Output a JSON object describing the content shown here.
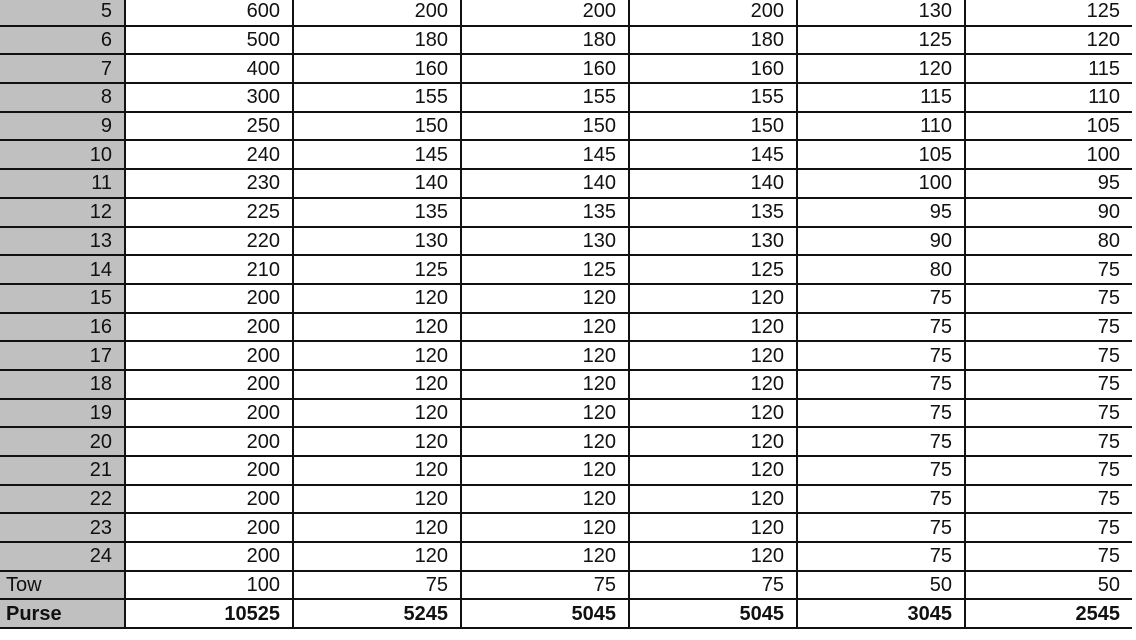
{
  "table": {
    "rows": [
      {
        "label": "5",
        "values": [
          "600",
          "200",
          "200",
          "200",
          "130",
          "125"
        ]
      },
      {
        "label": "6",
        "values": [
          "500",
          "180",
          "180",
          "180",
          "125",
          "120"
        ]
      },
      {
        "label": "7",
        "values": [
          "400",
          "160",
          "160",
          "160",
          "120",
          "115"
        ]
      },
      {
        "label": "8",
        "values": [
          "300",
          "155",
          "155",
          "155",
          "115",
          "110"
        ]
      },
      {
        "label": "9",
        "values": [
          "250",
          "150",
          "150",
          "150",
          "110",
          "105"
        ]
      },
      {
        "label": "10",
        "values": [
          "240",
          "145",
          "145",
          "145",
          "105",
          "100"
        ]
      },
      {
        "label": "11",
        "values": [
          "230",
          "140",
          "140",
          "140",
          "100",
          "95"
        ]
      },
      {
        "label": "12",
        "values": [
          "225",
          "135",
          "135",
          "135",
          "95",
          "90"
        ]
      },
      {
        "label": "13",
        "values": [
          "220",
          "130",
          "130",
          "130",
          "90",
          "80"
        ]
      },
      {
        "label": "14",
        "values": [
          "210",
          "125",
          "125",
          "125",
          "80",
          "75"
        ]
      },
      {
        "label": "15",
        "values": [
          "200",
          "120",
          "120",
          "120",
          "75",
          "75"
        ]
      },
      {
        "label": "16",
        "values": [
          "200",
          "120",
          "120",
          "120",
          "75",
          "75"
        ]
      },
      {
        "label": "17",
        "values": [
          "200",
          "120",
          "120",
          "120",
          "75",
          "75"
        ]
      },
      {
        "label": "18",
        "values": [
          "200",
          "120",
          "120",
          "120",
          "75",
          "75"
        ]
      },
      {
        "label": "19",
        "values": [
          "200",
          "120",
          "120",
          "120",
          "75",
          "75"
        ]
      },
      {
        "label": "20",
        "values": [
          "200",
          "120",
          "120",
          "120",
          "75",
          "75"
        ]
      },
      {
        "label": "21",
        "values": [
          "200",
          "120",
          "120",
          "120",
          "75",
          "75"
        ]
      },
      {
        "label": "22",
        "values": [
          "200",
          "120",
          "120",
          "120",
          "75",
          "75"
        ]
      },
      {
        "label": "23",
        "values": [
          "200",
          "120",
          "120",
          "120",
          "75",
          "75"
        ]
      },
      {
        "label": "24",
        "values": [
          "200",
          "120",
          "120",
          "120",
          "75",
          "75"
        ]
      },
      {
        "label": "Tow",
        "values": [
          "100",
          "75",
          "75",
          "75",
          "50",
          "50"
        ],
        "left": true
      },
      {
        "label": "Purse",
        "values": [
          "10525",
          "5245",
          "5045",
          "5045",
          "3045",
          "2545"
        ],
        "left": true,
        "bold": true
      }
    ]
  },
  "colors": {
    "label_bg": "#c0c0c0",
    "border": "#111111"
  }
}
